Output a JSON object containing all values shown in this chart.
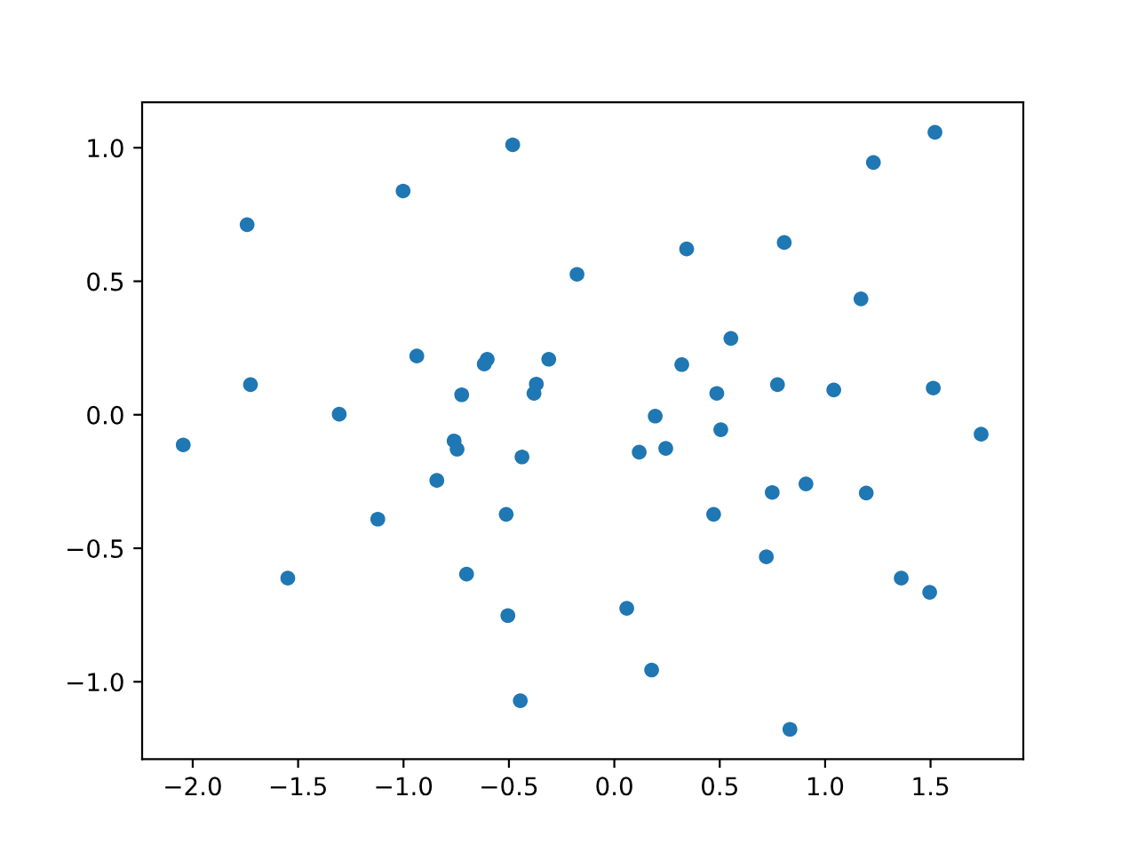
{
  "chart_data": {
    "type": "scatter",
    "series": [
      {
        "color": "#1f77b4",
        "x": [
          -0.482,
          -1.002,
          -1.742,
          -0.177,
          -0.937,
          -0.603,
          -0.617,
          -0.311,
          -1.726,
          -0.37,
          -0.381,
          -0.724,
          -1.305,
          1.521,
          1.229,
          0.806,
          0.343,
          1.17,
          0.553,
          0.32,
          0.774,
          1.041,
          1.513,
          0.486,
          0.194,
          0.505,
          1.74,
          -2.045,
          -0.76,
          -0.746,
          -0.438,
          -0.842,
          -1.122,
          -0.513,
          -0.701,
          -1.549,
          -0.505,
          -0.446,
          0.118,
          0.244,
          0.749,
          0.909,
          1.195,
          0.471,
          0.721,
          1.361,
          1.496,
          0.059,
          0.177,
          0.833
        ],
        "values": [
          1.011,
          0.838,
          0.712,
          0.526,
          0.22,
          0.208,
          0.19,
          0.208,
          0.113,
          0.115,
          0.08,
          0.075,
          0.002,
          1.058,
          0.945,
          0.645,
          0.621,
          0.434,
          0.286,
          0.188,
          0.113,
          0.093,
          0.1,
          0.08,
          -0.005,
          -0.056,
          -0.073,
          -0.113,
          -0.098,
          -0.129,
          -0.158,
          -0.246,
          -0.391,
          -0.373,
          -0.597,
          -0.612,
          -0.752,
          -1.071,
          -0.14,
          -0.126,
          -0.291,
          -0.259,
          -0.293,
          -0.373,
          -0.532,
          -0.612,
          -0.665,
          -0.725,
          -0.956,
          -1.178
        ]
      }
    ],
    "marker": "circle",
    "xlim": [
      -2.24,
      1.94
    ],
    "ylim": [
      -1.29,
      1.17
    ],
    "xticks": [
      {
        "value": -2.0,
        "label": "−2.0"
      },
      {
        "value": -1.5,
        "label": "−1.5"
      },
      {
        "value": -1.0,
        "label": "−1.0"
      },
      {
        "value": -0.5,
        "label": "−0.5"
      },
      {
        "value": 0.0,
        "label": "0.0"
      },
      {
        "value": 0.5,
        "label": "0.5"
      },
      {
        "value": 1.0,
        "label": "1.0"
      },
      {
        "value": 1.5,
        "label": "1.5"
      }
    ],
    "yticks": [
      {
        "value": -1.0,
        "label": "−1.0"
      },
      {
        "value": -0.5,
        "label": "−0.5"
      },
      {
        "value": 0.0,
        "label": "0.0"
      },
      {
        "value": 0.5,
        "label": "0.5"
      },
      {
        "value": 1.0,
        "label": "1.0"
      }
    ]
  }
}
